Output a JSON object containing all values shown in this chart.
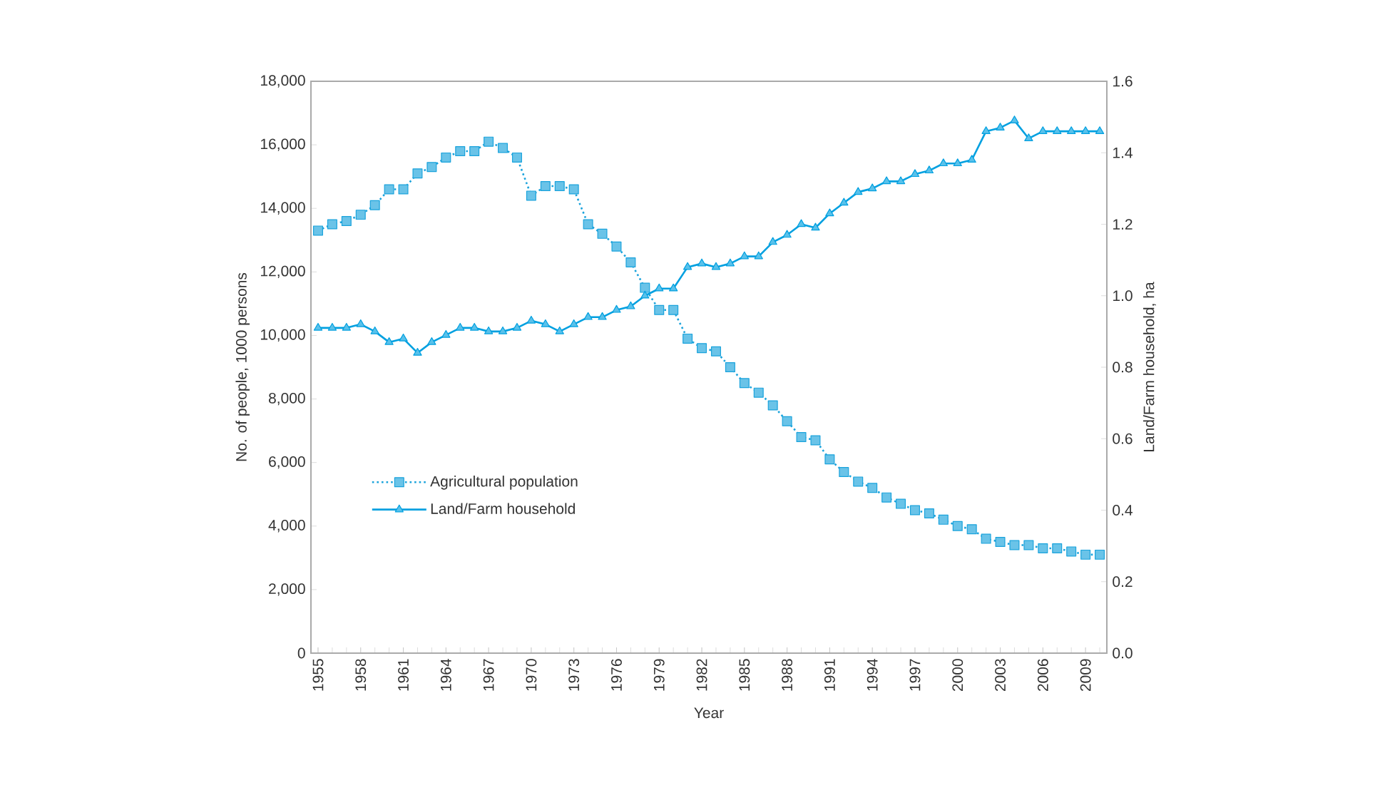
{
  "chart_data": {
    "type": "line",
    "xlabel": "Year",
    "ylabel": "No. of people, 1000 persons",
    "y2label": "Land/Farm household, ha",
    "x": [
      1955,
      1956,
      1957,
      1958,
      1959,
      1960,
      1961,
      1962,
      1963,
      1964,
      1965,
      1966,
      1967,
      1968,
      1969,
      1970,
      1971,
      1972,
      1973,
      1974,
      1975,
      1976,
      1977,
      1978,
      1979,
      1980,
      1981,
      1982,
      1983,
      1984,
      1985,
      1986,
      1987,
      1988,
      1989,
      1990,
      1991,
      1992,
      1993,
      1994,
      1995,
      1996,
      1997,
      1998,
      1999,
      2000,
      2001,
      2002,
      2003,
      2004,
      2005,
      2006,
      2007,
      2008,
      2009,
      2010
    ],
    "xlim": [
      1954.5,
      2010.5
    ],
    "xticks": [
      1955,
      1958,
      1961,
      1964,
      1967,
      1970,
      1973,
      1976,
      1979,
      1982,
      1985,
      1988,
      1991,
      1994,
      1997,
      2000,
      2003,
      2006,
      2009
    ],
    "ylim": [
      0,
      18000
    ],
    "yticks": [
      {
        "value": 0,
        "label": "0"
      },
      {
        "value": 2000,
        "label": "2,000"
      },
      {
        "value": 4000,
        "label": "4,000"
      },
      {
        "value": 6000,
        "label": "6,000"
      },
      {
        "value": 8000,
        "label": "8,000"
      },
      {
        "value": 10000,
        "label": "10,000"
      },
      {
        "value": 12000,
        "label": "12,000"
      },
      {
        "value": 14000,
        "label": "14,000"
      },
      {
        "value": 16000,
        "label": "16,000"
      },
      {
        "value": 18000,
        "label": "18,000"
      }
    ],
    "y2lim": [
      0,
      1.6
    ],
    "y2ticks": [
      {
        "value": 0,
        "label": "0.0"
      },
      {
        "value": 0.2,
        "label": "0.2"
      },
      {
        "value": 0.4,
        "label": "0.4"
      },
      {
        "value": 0.6,
        "label": "0.6"
      },
      {
        "value": 0.8,
        "label": "0.8"
      },
      {
        "value": 1.0,
        "label": "1.0"
      },
      {
        "value": 1.2,
        "label": "1.2"
      },
      {
        "value": 1.4,
        "label": "1.4"
      },
      {
        "value": 1.6,
        "label": "1.6"
      }
    ],
    "legend": "left",
    "series": [
      {
        "name": "Agricultural population",
        "color": "#1aa3dc",
        "marker": "square",
        "line_style": "dotted",
        "values": [
          13300,
          13500,
          13600,
          13800,
          14100,
          14600,
          14600,
          15100,
          15300,
          15600,
          15800,
          15800,
          16100,
          15900,
          15600,
          14400,
          14700,
          14700,
          14600,
          13500,
          13200,
          12800,
          12300,
          11500,
          10800,
          10800,
          9900,
          9600,
          9500,
          9000,
          8500,
          8200,
          7800,
          7300,
          6800,
          6700,
          6100,
          5700,
          5400,
          5200,
          4900,
          4700,
          4500,
          4400,
          4200,
          4000,
          3900,
          3600,
          3500,
          3400,
          3400,
          3300,
          3300,
          3200,
          3100,
          3100
        ]
      },
      {
        "name": "Land/Farm household",
        "color": "#00a0e0",
        "marker": "triangle",
        "line_style": "solid",
        "axis": "y2",
        "values": [
          0.91,
          0.91,
          0.91,
          0.92,
          0.9,
          0.87,
          0.88,
          0.84,
          0.87,
          0.89,
          0.91,
          0.91,
          0.9,
          0.9,
          0.91,
          0.93,
          0.92,
          0.9,
          0.92,
          0.94,
          0.94,
          0.96,
          0.97,
          1.0,
          1.02,
          1.02,
          1.08,
          1.09,
          1.08,
          1.09,
          1.11,
          1.11,
          1.15,
          1.17,
          1.2,
          1.19,
          1.23,
          1.26,
          1.29,
          1.3,
          1.32,
          1.32,
          1.34,
          1.35,
          1.37,
          1.37,
          1.38,
          1.46,
          1.47,
          1.49,
          1.44,
          1.46,
          1.46,
          1.46,
          1.46,
          1.46
        ]
      }
    ]
  }
}
